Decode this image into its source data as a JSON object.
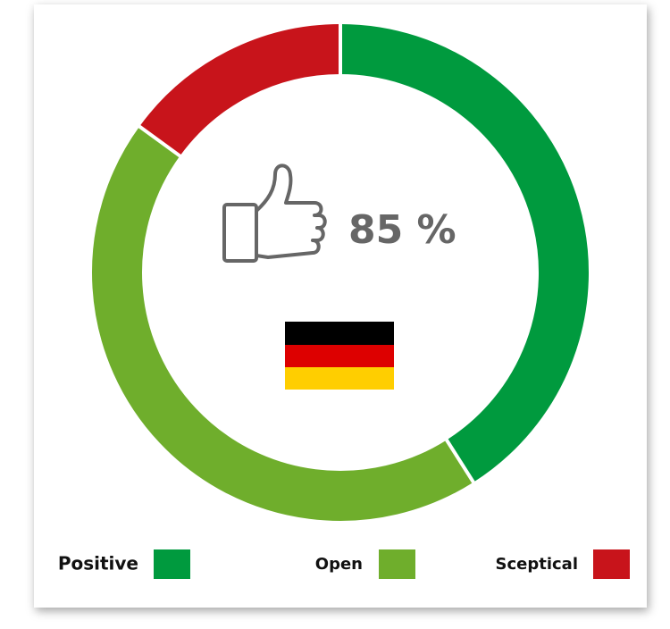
{
  "chart_data": {
    "type": "donut",
    "center_label": "85 %",
    "categories": [
      "Positive",
      "Open",
      "Sceptical"
    ],
    "values": [
      41,
      44,
      15
    ],
    "colors": [
      "#009a3e",
      "#6fae2c",
      "#c8141b"
    ]
  }
}
